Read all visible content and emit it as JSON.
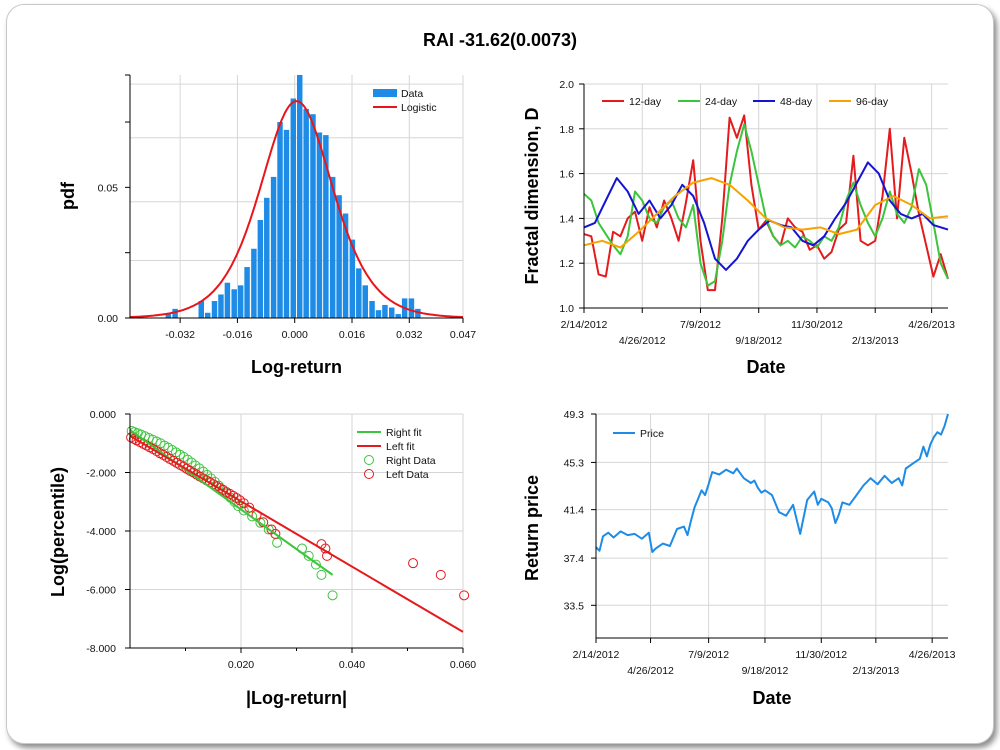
{
  "title": "RAI -31.62(0.0073)",
  "colors": {
    "hist": "#1e8ce6",
    "logistic": "#e8151b",
    "d12": "#e41a1c",
    "d24": "#3cc43c",
    "d48": "#1414d2",
    "d96": "#f5a300",
    "right": "#3cc43c",
    "left": "#e41a1c",
    "price": "#1e8ce6"
  },
  "chart_data": [
    {
      "id": "hist",
      "type": "bar",
      "xlabel": "Log-return",
      "ylabel": "pdf",
      "xticks": [
        "-0.032",
        "-0.016",
        "0.000",
        "0.016",
        "0.032",
        "0.047"
      ],
      "yticks": [
        "0.00",
        "0.05"
      ],
      "xlim": [
        -0.046,
        0.047
      ],
      "ylim": [
        0,
        0.093
      ],
      "legend": [
        "Data",
        "Logistic"
      ],
      "bins_x": [
        -0.0353,
        -0.0334,
        -0.0316,
        -0.0298,
        -0.0279,
        -0.0261,
        -0.0243,
        -0.0224,
        -0.0206,
        -0.0188,
        -0.0169,
        -0.0151,
        -0.0133,
        -0.0114,
        -0.0096,
        -0.0078,
        -0.0059,
        -0.0041,
        -0.0023,
        -0.0004,
        0.0014,
        0.0032,
        0.0051,
        0.0069,
        0.0087,
        0.0106,
        0.0124,
        0.0142,
        0.0161,
        0.0179,
        0.0197,
        0.0216,
        0.0234,
        0.0252,
        0.0271,
        0.0289,
        0.0307,
        0.0326,
        0.0344
      ],
      "values": [
        0.0015,
        0.0035,
        0.0,
        0.0,
        0.0,
        0.0065,
        0.002,
        0.0065,
        0.009,
        0.0135,
        0.011,
        0.0125,
        0.0195,
        0.0265,
        0.0375,
        0.046,
        0.054,
        0.075,
        0.072,
        0.084,
        0.093,
        0.08,
        0.078,
        0.071,
        0.07,
        0.054,
        0.047,
        0.04,
        0.03,
        0.019,
        0.0125,
        0.0065,
        0.003,
        0.005,
        0.004,
        0.0015,
        0.0075,
        0.0075,
        0.0035
      ],
      "logistic": {
        "mu": 0.0005,
        "s": 0.0068,
        "peak": 0.083
      }
    },
    {
      "id": "fractal",
      "type": "line",
      "xlabel": "Date",
      "ylabel": "Fractal dimension, D",
      "xticks_top": [
        "2/14/2012",
        "7/9/2012",
        "11/30/2012",
        "4/26/2013"
      ],
      "xticks_bottom": [
        "4/26/2012",
        "9/18/2012",
        "2/13/2013"
      ],
      "yticks": [
        "1.0",
        "1.2",
        "1.4",
        "1.6",
        "1.8",
        "2.0"
      ],
      "ylim": [
        1.0,
        2.0
      ],
      "xlim": [
        0,
        1
      ],
      "series": [
        {
          "name": "12-day",
          "color": "#e41a1c",
          "x": [
            0,
            0.02,
            0.04,
            0.06,
            0.08,
            0.1,
            0.12,
            0.14,
            0.16,
            0.18,
            0.2,
            0.22,
            0.24,
            0.26,
            0.28,
            0.3,
            0.32,
            0.34,
            0.36,
            0.38,
            0.4,
            0.42,
            0.44,
            0.46,
            0.48,
            0.5,
            0.52,
            0.54,
            0.56,
            0.58,
            0.6,
            0.62,
            0.64,
            0.66,
            0.68,
            0.7,
            0.72,
            0.74,
            0.76,
            0.78,
            0.8,
            0.82,
            0.84,
            0.86,
            0.88,
            0.9,
            0.92,
            0.94,
            0.96,
            0.98,
            1.0
          ],
          "values": [
            1.33,
            1.32,
            1.15,
            1.14,
            1.34,
            1.32,
            1.4,
            1.43,
            1.3,
            1.45,
            1.36,
            1.48,
            1.4,
            1.3,
            1.47,
            1.66,
            1.3,
            1.08,
            1.08,
            1.4,
            1.85,
            1.76,
            1.86,
            1.55,
            1.35,
            1.39,
            1.32,
            1.28,
            1.4,
            1.36,
            1.34,
            1.26,
            1.28,
            1.22,
            1.25,
            1.35,
            1.38,
            1.68,
            1.3,
            1.28,
            1.3,
            1.5,
            1.8,
            1.4,
            1.76,
            1.6,
            1.42,
            1.28,
            1.14,
            1.24,
            1.13
          ]
        },
        {
          "name": "24-day",
          "color": "#3cc43c",
          "x": [
            0,
            0.02,
            0.04,
            0.06,
            0.08,
            0.1,
            0.12,
            0.14,
            0.16,
            0.18,
            0.2,
            0.22,
            0.24,
            0.26,
            0.28,
            0.3,
            0.32,
            0.34,
            0.36,
            0.38,
            0.4,
            0.42,
            0.44,
            0.46,
            0.48,
            0.5,
            0.52,
            0.54,
            0.56,
            0.58,
            0.6,
            0.62,
            0.64,
            0.66,
            0.68,
            0.7,
            0.72,
            0.74,
            0.76,
            0.78,
            0.8,
            0.82,
            0.84,
            0.86,
            0.88,
            0.9,
            0.92,
            0.94,
            0.96,
            0.98,
            1.0
          ],
          "values": [
            1.51,
            1.48,
            1.38,
            1.33,
            1.28,
            1.24,
            1.32,
            1.52,
            1.48,
            1.4,
            1.38,
            1.45,
            1.48,
            1.4,
            1.36,
            1.46,
            1.2,
            1.1,
            1.12,
            1.3,
            1.55,
            1.7,
            1.82,
            1.7,
            1.55,
            1.4,
            1.32,
            1.28,
            1.3,
            1.27,
            1.32,
            1.3,
            1.27,
            1.32,
            1.3,
            1.36,
            1.48,
            1.56,
            1.46,
            1.38,
            1.32,
            1.4,
            1.52,
            1.42,
            1.38,
            1.45,
            1.62,
            1.55,
            1.38,
            1.2,
            1.13
          ]
        },
        {
          "name": "48-day",
          "color": "#1414d2",
          "x": [
            0,
            0.03,
            0.06,
            0.09,
            0.12,
            0.15,
            0.18,
            0.21,
            0.24,
            0.27,
            0.3,
            0.33,
            0.36,
            0.39,
            0.42,
            0.45,
            0.48,
            0.51,
            0.54,
            0.57,
            0.6,
            0.63,
            0.66,
            0.69,
            0.72,
            0.75,
            0.78,
            0.81,
            0.84,
            0.87,
            0.9,
            0.93,
            0.96,
            1.0
          ],
          "values": [
            1.36,
            1.38,
            1.48,
            1.58,
            1.52,
            1.42,
            1.48,
            1.4,
            1.46,
            1.55,
            1.5,
            1.38,
            1.22,
            1.17,
            1.22,
            1.3,
            1.35,
            1.39,
            1.37,
            1.36,
            1.3,
            1.28,
            1.32,
            1.4,
            1.47,
            1.56,
            1.65,
            1.6,
            1.48,
            1.42,
            1.4,
            1.42,
            1.37,
            1.35
          ]
        },
        {
          "name": "96-day",
          "color": "#f5a300",
          "x": [
            0,
            0.05,
            0.1,
            0.15,
            0.2,
            0.25,
            0.3,
            0.35,
            0.4,
            0.45,
            0.5,
            0.55,
            0.6,
            0.65,
            0.7,
            0.75,
            0.8,
            0.85,
            0.9,
            0.95,
            1.0
          ],
          "values": [
            1.28,
            1.3,
            1.27,
            1.34,
            1.42,
            1.5,
            1.56,
            1.58,
            1.55,
            1.48,
            1.4,
            1.36,
            1.35,
            1.36,
            1.33,
            1.35,
            1.46,
            1.5,
            1.46,
            1.4,
            1.41
          ]
        }
      ],
      "legend": [
        "12-day",
        "24-day",
        "48-day",
        "96-day"
      ]
    },
    {
      "id": "tail",
      "type": "scatter",
      "xlabel": "|Log-return|",
      "ylabel": "Log(percentile)",
      "xticks": [
        "0.020",
        "0.040",
        "0.060"
      ],
      "yticks": [
        "0.000",
        "-2.000",
        "-4.000",
        "-6.000",
        "-8.000"
      ],
      "xlim": [
        0,
        0.06
      ],
      "ylim": [
        -8,
        0
      ],
      "legend": [
        "Right fit",
        "Left fit",
        "Right Data",
        "Left Data"
      ],
      "right_fit": {
        "x": [
          0,
          0.0365
        ],
        "y": [
          -0.55,
          -5.5
        ]
      },
      "left_fit": {
        "x": [
          0,
          0.06
        ],
        "y": [
          -0.75,
          -7.45
        ]
      },
      "right_data": {
        "x": [
          0.0003,
          0.0008,
          0.0014,
          0.002,
          0.0027,
          0.0034,
          0.0041,
          0.0048,
          0.0055,
          0.0062,
          0.0069,
          0.0076,
          0.0083,
          0.009,
          0.0097,
          0.0104,
          0.0111,
          0.0118,
          0.0125,
          0.0132,
          0.0139,
          0.0146,
          0.0153,
          0.016,
          0.0167,
          0.0174,
          0.0181,
          0.0188,
          0.0195,
          0.0205,
          0.022,
          0.0235,
          0.025,
          0.0265,
          0.031,
          0.0322,
          0.0335,
          0.0345,
          0.0365
        ],
        "y": [
          -0.58,
          -0.62,
          -0.66,
          -0.7,
          -0.76,
          -0.82,
          -0.88,
          -0.94,
          -1.0,
          -1.08,
          -1.15,
          -1.23,
          -1.31,
          -1.39,
          -1.47,
          -1.56,
          -1.66,
          -1.76,
          -1.86,
          -1.97,
          -2.08,
          -2.2,
          -2.32,
          -2.45,
          -2.58,
          -2.72,
          -2.86,
          -3.0,
          -3.15,
          -3.3,
          -3.5,
          -3.72,
          -3.95,
          -4.4,
          -4.6,
          -4.85,
          -5.15,
          -5.5,
          -6.2
        ]
      },
      "left_data": {
        "x": [
          0.0002,
          0.0007,
          0.0012,
          0.0018,
          0.0024,
          0.003,
          0.0036,
          0.0042,
          0.0048,
          0.0054,
          0.006,
          0.0066,
          0.0072,
          0.0078,
          0.0084,
          0.009,
          0.0096,
          0.0102,
          0.0108,
          0.0114,
          0.012,
          0.0126,
          0.0132,
          0.0138,
          0.0144,
          0.015,
          0.0156,
          0.0162,
          0.0168,
          0.0174,
          0.018,
          0.0186,
          0.0192,
          0.0198,
          0.0205,
          0.0215,
          0.0228,
          0.024,
          0.0255,
          0.0262,
          0.0345,
          0.0352,
          0.0355,
          0.051,
          0.056,
          0.0602
        ],
        "y": [
          -0.8,
          -0.85,
          -0.9,
          -0.96,
          -1.02,
          -1.08,
          -1.14,
          -1.2,
          -1.27,
          -1.34,
          -1.4,
          -1.47,
          -1.54,
          -1.6,
          -1.67,
          -1.74,
          -1.8,
          -1.87,
          -1.94,
          -2.0,
          -2.07,
          -2.14,
          -2.2,
          -2.27,
          -2.33,
          -2.4,
          -2.47,
          -2.53,
          -2.6,
          -2.67,
          -2.73,
          -2.8,
          -2.87,
          -2.95,
          -3.05,
          -3.2,
          -3.45,
          -3.7,
          -3.95,
          -4.1,
          -4.45,
          -4.6,
          -4.85,
          -5.1,
          -5.5,
          -6.2
        ]
      }
    },
    {
      "id": "price",
      "type": "line",
      "xlabel": "Date",
      "ylabel": "Return price",
      "xticks_top": [
        "2/14/2012",
        "7/9/2012",
        "11/30/2012",
        "4/26/2013"
      ],
      "xticks_bottom": [
        "4/26/2012",
        "9/18/2012",
        "2/13/2013"
      ],
      "yticks": [
        "33.5",
        "37.4",
        "41.4",
        "45.3",
        "49.3"
      ],
      "ylim": [
        30.8,
        49.3
      ],
      "xlim": [
        0,
        1
      ],
      "legend": [
        "Price"
      ],
      "series": [
        {
          "name": "Price",
          "color": "#1e8ce6",
          "x": [
            0,
            0.01,
            0.02,
            0.035,
            0.05,
            0.07,
            0.09,
            0.11,
            0.13,
            0.15,
            0.16,
            0.17,
            0.19,
            0.21,
            0.23,
            0.25,
            0.26,
            0.27,
            0.28,
            0.29,
            0.3,
            0.31,
            0.32,
            0.33,
            0.35,
            0.37,
            0.39,
            0.4,
            0.42,
            0.44,
            0.45,
            0.46,
            0.47,
            0.48,
            0.5,
            0.52,
            0.54,
            0.56,
            0.57,
            0.58,
            0.6,
            0.62,
            0.63,
            0.64,
            0.66,
            0.67,
            0.68,
            0.69,
            0.7,
            0.72,
            0.74,
            0.76,
            0.78,
            0.8,
            0.82,
            0.84,
            0.86,
            0.87,
            0.88,
            0.9,
            0.92,
            0.93,
            0.94,
            0.95,
            0.96,
            0.97,
            0.98,
            0.99,
            1.0
          ],
          "values": [
            38.3,
            38.0,
            39.2,
            39.5,
            39.1,
            39.6,
            39.3,
            39.4,
            39.0,
            39.5,
            37.9,
            38.2,
            38.6,
            38.4,
            39.8,
            40.0,
            39.3,
            40.5,
            41.6,
            42.3,
            43.0,
            42.6,
            43.5,
            44.5,
            44.3,
            44.7,
            44.4,
            44.8,
            44.0,
            43.6,
            43.8,
            43.2,
            42.8,
            43.0,
            42.6,
            41.2,
            40.9,
            41.8,
            40.6,
            39.4,
            42.2,
            42.9,
            41.8,
            42.3,
            42.0,
            41.5,
            40.3,
            41.0,
            42.0,
            41.8,
            42.6,
            43.4,
            44.0,
            43.5,
            44.2,
            43.6,
            44.0,
            43.4,
            44.8,
            45.2,
            45.6,
            46.6,
            45.8,
            46.8,
            47.4,
            47.8,
            47.6,
            48.3,
            49.3
          ]
        }
      ]
    }
  ]
}
